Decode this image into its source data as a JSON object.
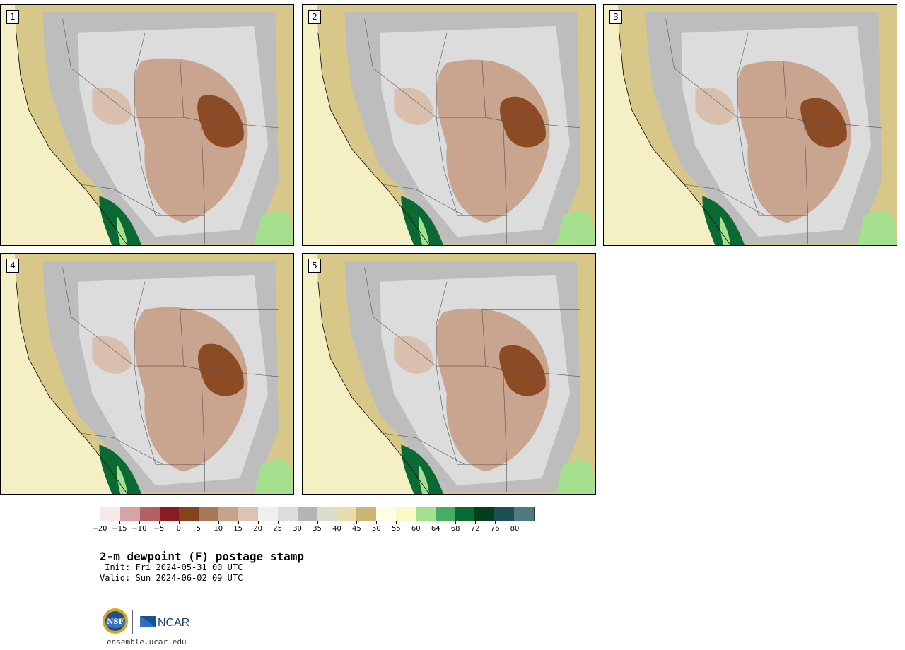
{
  "panels": [
    {
      "label": "1"
    },
    {
      "label": "2"
    },
    {
      "label": "3"
    },
    {
      "label": "4"
    },
    {
      "label": "5"
    }
  ],
  "colorbar": {
    "colors": [
      "#f6e9ea",
      "#d6a4a7",
      "#b46166",
      "#8b1b22",
      "#84431a",
      "#a8785a",
      "#c5a38b",
      "#dcc4b4",
      "#efefef",
      "#dddddd",
      "#b5b5b5",
      "#dcdccc",
      "#e9dcb1",
      "#ccb676",
      "#fefee6",
      "#fafac6",
      "#a5e08e",
      "#46ae62",
      "#0b6a34",
      "#053e1d",
      "#1c5051",
      "#4f7a7e"
    ],
    "ticks": [
      "−20",
      "−15",
      "−10",
      "−5",
      "0",
      "5",
      "10",
      "15",
      "20",
      "25",
      "30",
      "35",
      "40",
      "45",
      "50",
      "55",
      "60",
      "64",
      "68",
      "72",
      "76",
      "80"
    ]
  },
  "title": "2-m dewpoint (F) postage stamp",
  "init": " Init: Fri 2024-05-31 00 UTC",
  "valid": "Valid: Sun 2024-06-02 09 UTC",
  "logos": {
    "nsf": "NSF",
    "ncar": "NCAR"
  },
  "footer_url": "ensemble.ucar.edu",
  "colors": {
    "ocean": "#f4f0c4",
    "coast": "#d7c789",
    "desert": "#c59a80",
    "gray": "#bdbdbd",
    "humid": "#0b6a34"
  }
}
